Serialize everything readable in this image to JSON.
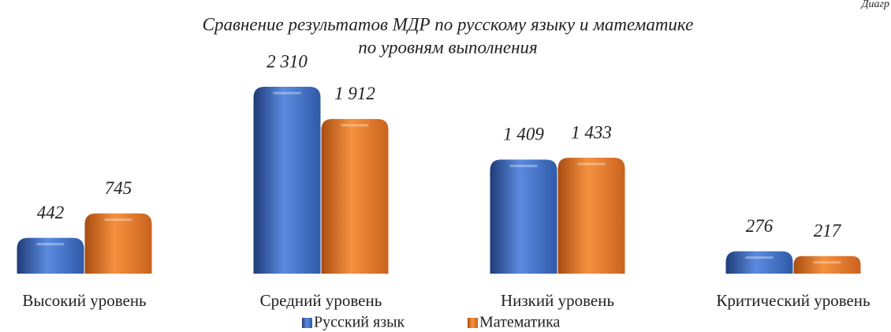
{
  "chart_data": {
    "type": "bar",
    "annotation": "Диагр",
    "title": [
      "Сравнение результатов МДР по русскому языку и математике",
      "по уровням выполнения"
    ],
    "categories": [
      "Высокий уровень",
      "Средний уровень",
      "Низкий уровень",
      "Критический уровень"
    ],
    "series": [
      {
        "name": "Русский язык",
        "color": "#4472c4",
        "values": [
          442,
          2310,
          1409,
          276
        ],
        "value_labels": [
          "442",
          "2 310",
          "1 409",
          "276"
        ]
      },
      {
        "name": "Математика",
        "color": "#ed7d31",
        "values": [
          745,
          1912,
          1433,
          217
        ],
        "value_labels": [
          "745",
          "1 912",
          "1 433",
          "217"
        ]
      }
    ]
  }
}
